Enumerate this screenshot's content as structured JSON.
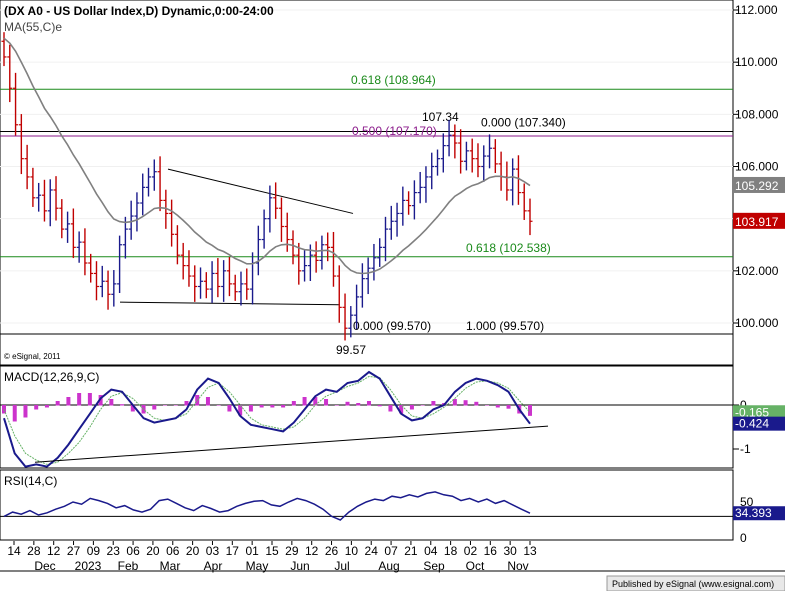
{
  "header": {
    "title": "(DX A0 - US Dollar Index,D) Dynamic,0:00-24:00",
    "ma_label": "MA(55,C)e",
    "watermark": "© eSignal, 2011",
    "publisher": "Published by eSignal (www.esignal.com)"
  },
  "chart_data": [
    {
      "type": "candlestick",
      "title": "(DX A0 - US Dollar Index,D) Dynamic,0:00-24:00",
      "x_tick_labels": [
        "14",
        "28",
        "12",
        "27",
        "09",
        "23",
        "06",
        "20",
        "06",
        "20",
        "03",
        "17",
        "01",
        "15",
        "29",
        "12",
        "26",
        "10",
        "24",
        "07",
        "21",
        "04",
        "18",
        "02",
        "16",
        "30",
        "13"
      ],
      "x_month_labels": [
        "Dec",
        "2023",
        "Feb",
        "Mar",
        "Apr",
        "May",
        "Jun",
        "Jul",
        "Aug",
        "Sep",
        "Oct",
        "Nov"
      ],
      "ylim": [
        99.5,
        112.2
      ],
      "y_ticks": [
        "100.000",
        "102.000",
        "104.000",
        "106.000",
        "108.000",
        "110.000",
        "112.000"
      ],
      "y_tick_values": [
        100,
        102,
        104,
        106,
        108,
        110,
        112
      ],
      "series": [
        {
          "name": "MA(55,C)e",
          "last_value": 105.292,
          "last_label": "105.292",
          "color": "#808080"
        },
        {
          "name": "DX A0",
          "last_value": 103.917,
          "last_label": "103.917",
          "color": "#c00000"
        }
      ],
      "approx_closes": [
        110.2,
        109.0,
        107.6,
        106.3,
        105.6,
        104.8,
        104.9,
        104.3,
        105.1,
        104.4,
        103.6,
        103.8,
        102.9,
        103.1,
        102.3,
        101.9,
        101.4,
        101.6,
        101.1,
        101.5,
        103.0,
        103.6,
        104.1,
        104.6,
        105.2,
        105.6,
        105.8,
        104.7,
        104.2,
        103.4,
        102.6,
        102.2,
        101.8,
        101.4,
        101.6,
        101.3,
        101.9,
        101.4,
        102.0,
        101.5,
        101.2,
        101.5,
        101.3,
        102.3,
        103.2,
        104.0,
        104.8,
        104.4,
        103.7,
        103.2,
        102.6,
        102.0,
        102.2,
        102.6,
        102.4,
        103.0,
        102.9,
        101.8,
        100.6,
        99.8,
        100.3,
        101.0,
        101.7,
        102.1,
        102.5,
        102.9,
        103.6,
        103.9,
        104.2,
        104.7,
        104.5,
        105.0,
        105.2,
        105.6,
        106.0,
        106.3,
        106.8,
        107.2,
        106.9,
        106.2,
        106.6,
        106.3,
        106.0,
        106.4,
        106.7,
        106.1,
        105.6,
        105.1,
        105.9,
        105.0,
        104.3,
        103.9
      ],
      "annotations": [
        {
          "label": "0.618 (108.964)",
          "value": 108.964,
          "color": "#1a8a1a"
        },
        {
          "label": "0.500 (107.170)",
          "value": 107.17,
          "color": "#8b1a8b"
        },
        {
          "label": "0.000 (107.340)",
          "value": 107.34,
          "color": "#000000"
        },
        {
          "label": "107.34",
          "value": 107.34,
          "color": "#000000"
        },
        {
          "label": "0.618 (102.538)",
          "value": 102.538,
          "color": "#1a8a1a"
        },
        {
          "label": "0.000 (99.570)",
          "value": 99.57,
          "color": "#000000"
        },
        {
          "label": "1.000 (99.570)",
          "value": 99.57,
          "color": "#000000"
        },
        {
          "label": "99.57",
          "value": 99.57,
          "color": "#000000"
        }
      ],
      "trendlines": [
        {
          "name": "upper triangle line",
          "from": [
            "Mar 06",
            105.9
          ],
          "to": [
            "Jul 03",
            104.2
          ]
        },
        {
          "name": "lower triangle line",
          "from": [
            "Jan 23",
            100.8
          ],
          "to": [
            "Jul 03",
            100.7
          ]
        }
      ]
    },
    {
      "type": "line",
      "title": "MACD(12,26,9,C)",
      "y_ticks": [
        "0",
        "-1"
      ],
      "y_tick_values": [
        0,
        -1
      ],
      "series": [
        {
          "name": "MACD",
          "color": "#1a1a8c",
          "last_value": -0.424,
          "last_label": "-0.424",
          "values": [
            -0.3,
            -1.1,
            -1.4,
            -1.35,
            -1.4,
            -1.2,
            -0.9,
            -0.55,
            -0.2,
            0.15,
            0.35,
            0.3,
            0.0,
            -0.3,
            -0.4,
            -0.35,
            -0.3,
            -0.1,
            0.35,
            0.6,
            0.5,
            0.15,
            -0.25,
            -0.45,
            -0.5,
            -0.55,
            -0.6,
            -0.4,
            -0.1,
            0.2,
            0.35,
            0.3,
            0.5,
            0.55,
            0.75,
            0.6,
            0.2,
            -0.2,
            -0.35,
            -0.3,
            -0.1,
            0.0,
            0.3,
            0.5,
            0.6,
            0.55,
            0.45,
            0.3,
            -0.1,
            -0.424
          ]
        },
        {
          "name": "Signal",
          "color": "#66b266",
          "last_value": -0.165,
          "last_label": "-0.165",
          "values": [
            -0.1,
            -0.7,
            -1.1,
            -1.25,
            -1.35,
            -1.3,
            -1.1,
            -0.85,
            -0.5,
            -0.1,
            0.2,
            0.28,
            0.15,
            -0.1,
            -0.3,
            -0.35,
            -0.3,
            -0.2,
            0.1,
            0.4,
            0.5,
            0.3,
            0.0,
            -0.3,
            -0.45,
            -0.5,
            -0.55,
            -0.5,
            -0.3,
            0.0,
            0.2,
            0.3,
            0.42,
            0.5,
            0.65,
            0.62,
            0.35,
            0.0,
            -0.25,
            -0.3,
            -0.2,
            -0.05,
            0.15,
            0.38,
            0.52,
            0.55,
            0.5,
            0.38,
            0.1,
            -0.165
          ]
        }
      ],
      "histogram_color": "#cc33cc",
      "trendline": {
        "name": "MACD support line",
        "from": [
          "Dec 28",
          -1.15
        ],
        "to": [
          "Nov 13",
          -0.42
        ]
      }
    },
    {
      "type": "line",
      "title": "RSI(14,C)",
      "y_ticks": [
        "50",
        "0"
      ],
      "y_tick_values": [
        50,
        0
      ],
      "series": [
        {
          "name": "RSI",
          "color": "#1a1a8c",
          "last_value": 34.393,
          "last_label": "34.393",
          "values": [
            30,
            36,
            33,
            38,
            32,
            35,
            40,
            44,
            50,
            47,
            55,
            52,
            48,
            42,
            45,
            39,
            36,
            40,
            52,
            54,
            48,
            42,
            38,
            45,
            41,
            36,
            38,
            44,
            48,
            51,
            52,
            46,
            44,
            50,
            55,
            52,
            47,
            40,
            30,
            25,
            36,
            44,
            50,
            54,
            52,
            58,
            56,
            60,
            57,
            62,
            64,
            60,
            58,
            52,
            55,
            50,
            54,
            48,
            52,
            46,
            40,
            34.393
          ]
        }
      ]
    }
  ]
}
